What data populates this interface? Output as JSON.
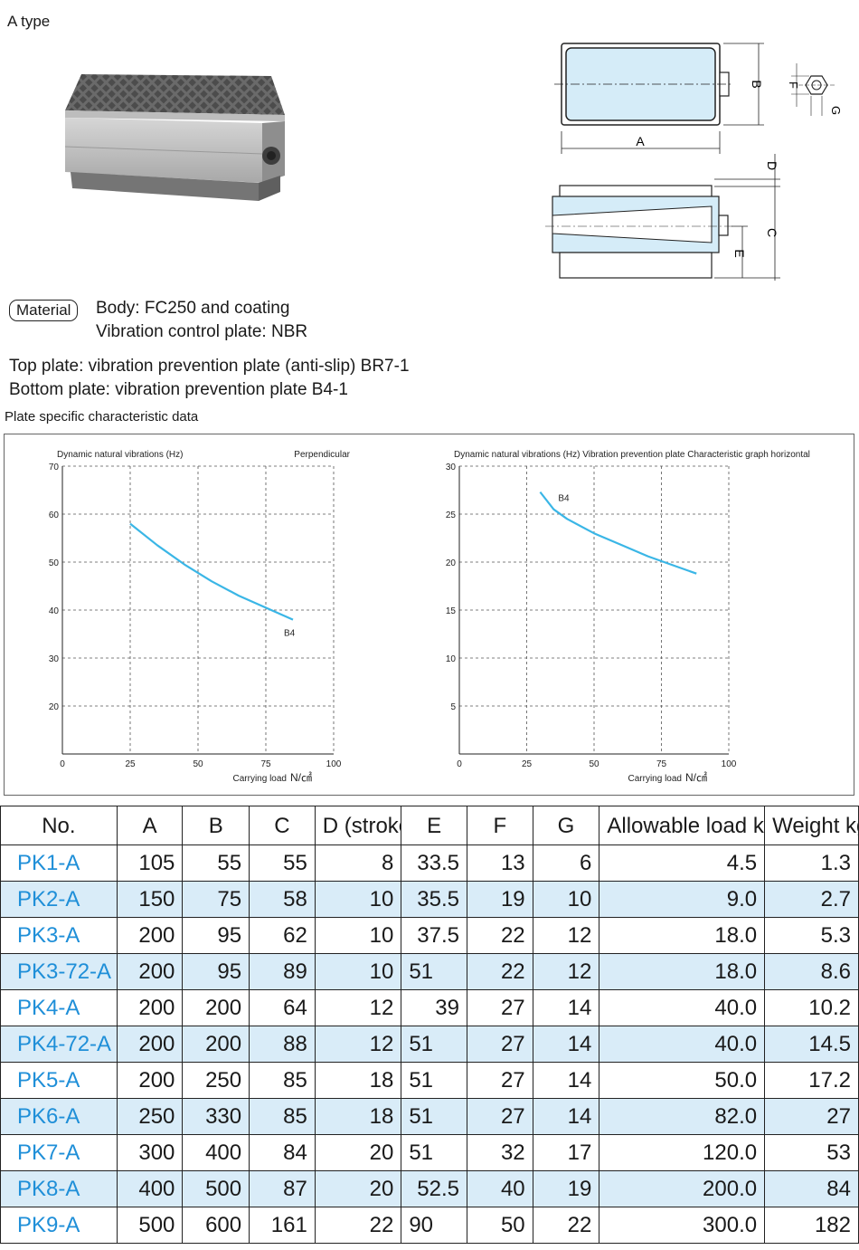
{
  "type_label": "A type",
  "drawing_labels": {
    "A": "A",
    "B": "B",
    "C": "C",
    "D": "D",
    "E": "E",
    "F": "F",
    "G": "G"
  },
  "material": {
    "badge": "Material",
    "lines": [
      "Body: FC250 and coating",
      "Vibration control plate: NBR"
    ]
  },
  "plates": [
    "Top plate: vibration prevention plate (anti-slip) BR7-1",
    "Bottom plate: vibration prevention plate B4-1"
  ],
  "charts_caption": "Plate specific characteristic data",
  "chart_data": [
    {
      "type": "line",
      "title": "Dynamic natural vibrations (Hz)",
      "subtitle": "Perpendicular",
      "xlabel": "Carrying load",
      "xunit": "N/㎠",
      "xlim": [
        0,
        100
      ],
      "ylim": [
        10,
        70
      ],
      "xticks": [
        "0",
        "25",
        "50",
        "75",
        "100"
      ],
      "yticks": [
        "20",
        "30",
        "40",
        "50",
        "60",
        "70"
      ],
      "grid": true,
      "series": [
        {
          "name": "B4",
          "color": "#3ab6e6",
          "x": [
            25,
            35,
            45,
            55,
            65,
            75,
            85
          ],
          "y": [
            58,
            53.5,
            49.5,
            46,
            43,
            40.5,
            38
          ]
        }
      ]
    },
    {
      "type": "line",
      "title": "Dynamic natural vibrations (Hz)  Vibration prevention plate  Characteristic graph  horizontal",
      "subtitle": "",
      "xlabel": "Carrying load",
      "xunit": "N/㎠",
      "xlim": [
        0,
        100
      ],
      "ylim": [
        0,
        30
      ],
      "xticks": [
        "0",
        "25",
        "50",
        "75",
        "100"
      ],
      "yticks": [
        "5",
        "10",
        "15",
        "20",
        "25",
        "30"
      ],
      "grid": true,
      "series": [
        {
          "name": "B4",
          "color": "#3ab6e6",
          "x": [
            30,
            35,
            40,
            50,
            60,
            70,
            80,
            88
          ],
          "y": [
            27.3,
            25.5,
            24.5,
            23,
            21.8,
            20.6,
            19.6,
            18.8
          ]
        }
      ]
    }
  ],
  "table": {
    "headers": [
      "No.",
      "A",
      "B",
      "C",
      "D (stroke)",
      "E",
      "F",
      "G",
      "Allowable load kN",
      "Weight kg"
    ],
    "rows": [
      [
        "PK1-A",
        "105",
        "55",
        "55",
        "8",
        "33.5",
        "13",
        "6",
        "4.5",
        "1.3"
      ],
      [
        "PK2-A",
        "150",
        "75",
        "58",
        "10",
        "35.5",
        "19",
        "10",
        "9.0",
        "2.7"
      ],
      [
        "PK3-A",
        "200",
        "95",
        "62",
        "10",
        "37.5",
        "22",
        "12",
        "18.0",
        "5.3"
      ],
      [
        "PK3-72-A",
        "200",
        "95",
        "89",
        "10",
        "51",
        "22",
        "12",
        "18.0",
        "8.6"
      ],
      [
        "PK4-A",
        "200",
        "200",
        "64",
        "12",
        "39",
        "27",
        "14",
        "40.0",
        "10.2"
      ],
      [
        "PK4-72-A",
        "200",
        "200",
        "88",
        "12",
        "51",
        "27",
        "14",
        "40.0",
        "14.5"
      ],
      [
        "PK5-A",
        "200",
        "250",
        "85",
        "18",
        "51",
        "27",
        "14",
        "50.0",
        "17.2"
      ],
      [
        "PK6-A",
        "250",
        "330",
        "85",
        "18",
        "51",
        "27",
        "14",
        "82.0",
        "27"
      ],
      [
        "PK7-A",
        "300",
        "400",
        "84",
        "20",
        "51",
        "32",
        "17",
        "120.0",
        "53"
      ],
      [
        "PK8-A",
        "400",
        "500",
        "87",
        "20",
        "52.5",
        "40",
        "19",
        "200.0",
        "84"
      ],
      [
        "PK9-A",
        "500",
        "600",
        "161",
        "22",
        "90",
        "50",
        "22",
        "300.0",
        "182"
      ]
    ]
  }
}
